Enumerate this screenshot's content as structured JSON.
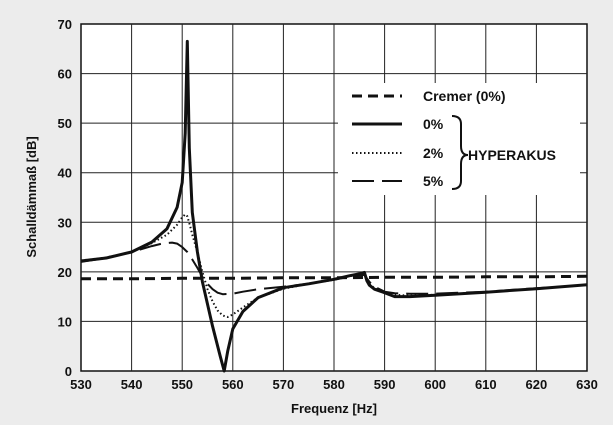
{
  "chart_data": {
    "type": "line",
    "xlabel": "Frequenz  [Hz]",
    "ylabel": "Schalldämmaß [dB]",
    "xlim": [
      530,
      630
    ],
    "ylim": [
      0,
      70
    ],
    "xticks": [
      "530",
      "540",
      "550",
      "560",
      "570",
      "580",
      "590",
      "600",
      "610",
      "620",
      "630"
    ],
    "yticks": [
      "0",
      "10",
      "20",
      "30",
      "40",
      "50",
      "60",
      "70"
    ],
    "grid": true,
    "legend_position": "top-right",
    "legend_group_label": "HYPERAKUS",
    "series": [
      {
        "name": "Cremer (0%)",
        "style": "dashed",
        "x": [
          530,
          540,
          550,
          560,
          570,
          580,
          590,
          600,
          610,
          620,
          630
        ],
        "y": [
          18.6,
          18.6,
          18.7,
          18.7,
          18.8,
          18.8,
          18.9,
          18.9,
          19.0,
          19.0,
          19.1
        ]
      },
      {
        "name": "0%",
        "style": "solid",
        "x": [
          530,
          535,
          540,
          544,
          547,
          549,
          550,
          550.6,
          551,
          551.4,
          552,
          553,
          554,
          556,
          557.5,
          558.3,
          559,
          560,
          562,
          565,
          570,
          575,
          580,
          583,
          585,
          586,
          586.5,
          587,
          588,
          590,
          592,
          595,
          600,
          610,
          620,
          630
        ],
        "y": [
          22.2,
          22.8,
          24.0,
          26.0,
          28.7,
          33.0,
          38.0,
          48.0,
          66.5,
          45.0,
          32.0,
          24.0,
          18.0,
          9.0,
          3.0,
          0.0,
          4.0,
          8.5,
          12.0,
          14.8,
          16.8,
          17.6,
          18.5,
          19.2,
          19.6,
          19.9,
          18.2,
          17.3,
          16.5,
          15.8,
          15.0,
          15.0,
          15.3,
          15.9,
          16.6,
          17.4
        ]
      },
      {
        "name": "2%",
        "style": "dotted",
        "x": [
          530,
          535,
          540,
          544,
          547,
          549,
          550,
          550.6,
          551,
          551.5,
          552,
          553,
          554,
          555,
          556,
          557,
          558,
          559,
          560,
          562,
          565,
          570,
          575,
          580,
          583,
          585,
          586,
          587,
          588,
          590,
          592,
          595,
          600,
          610,
          620,
          630
        ],
        "y": [
          22.3,
          22.9,
          24.0,
          25.8,
          27.5,
          29.5,
          31.0,
          31.6,
          31.2,
          29.5,
          27.5,
          24.0,
          20.0,
          16.5,
          14.0,
          12.2,
          11.2,
          10.9,
          11.4,
          12.8,
          14.8,
          16.6,
          17.6,
          18.5,
          19.1,
          19.5,
          19.3,
          17.6,
          16.7,
          15.8,
          15.4,
          15.2,
          15.4,
          15.9,
          16.6,
          17.4
        ]
      },
      {
        "name": "5%",
        "style": "long-dashed",
        "x": [
          530,
          535,
          540,
          544,
          546,
          548,
          549,
          550,
          551,
          552,
          553,
          554,
          555,
          556,
          557,
          558,
          560,
          562,
          565,
          570,
          575,
          580,
          583,
          585,
          586,
          587,
          588,
          590,
          592,
          595,
          600,
          610,
          620,
          630
        ],
        "y": [
          22.0,
          22.8,
          24.0,
          25.2,
          25.7,
          25.9,
          25.7,
          25.0,
          24.0,
          22.5,
          20.8,
          19.0,
          17.6,
          16.5,
          15.8,
          15.5,
          15.6,
          16.0,
          16.5,
          17.0,
          17.6,
          18.4,
          19.0,
          19.3,
          19.4,
          18.0,
          17.0,
          16.0,
          15.7,
          15.6,
          15.6,
          16.0,
          16.7,
          17.3
        ]
      }
    ]
  }
}
